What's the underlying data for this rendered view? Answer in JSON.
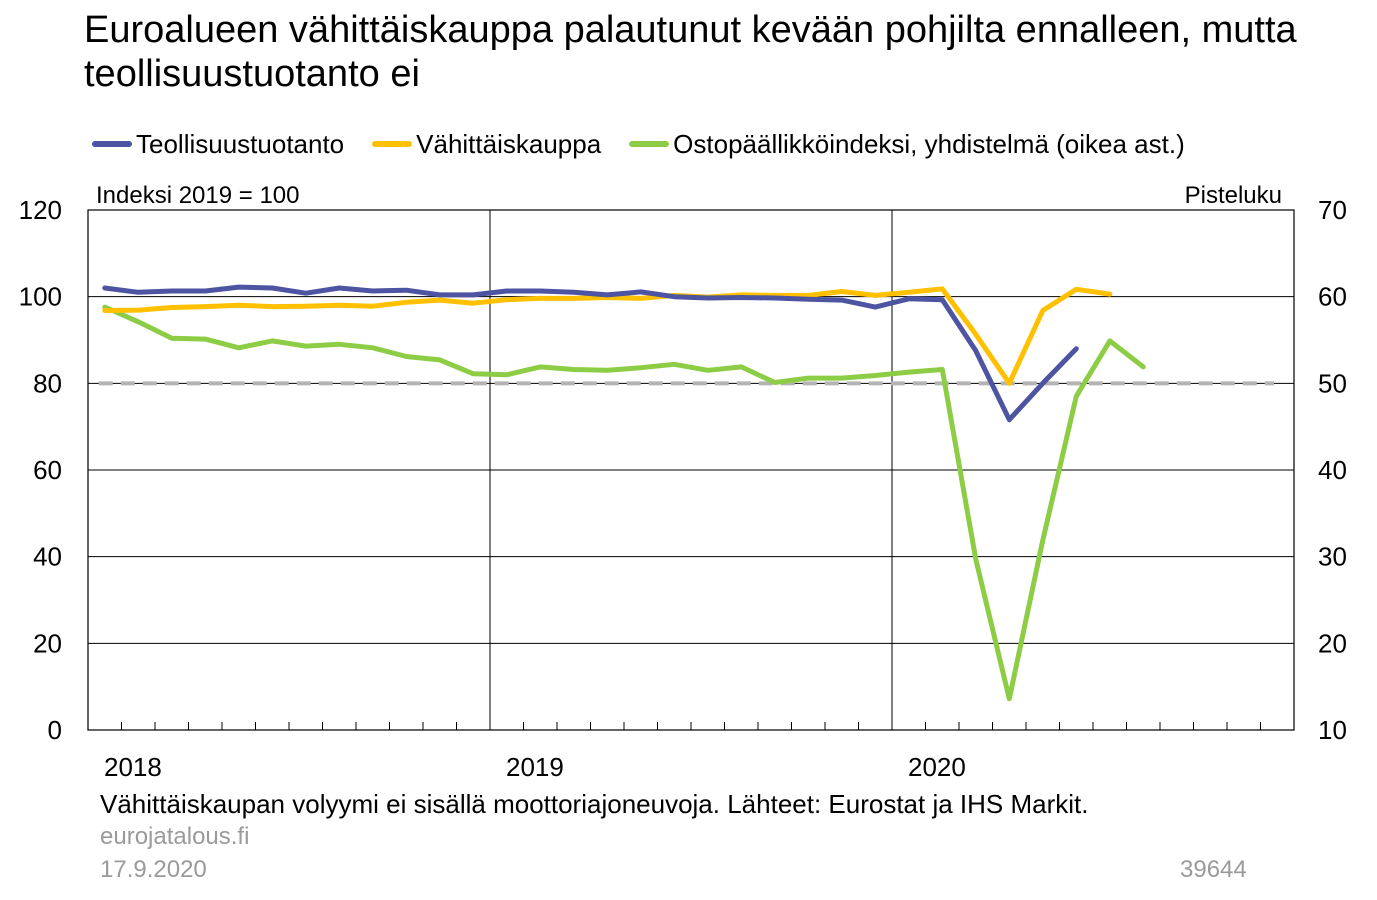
{
  "title": "Euroalueen vähittäiskauppa palautunut kevään pohjilta ennalleen, mutta teollisuustuotanto ei",
  "colors": {
    "teollisuus": "#4d54a2",
    "vahittais": "#ffc000",
    "ostopaallikko": "#8ccd45",
    "reference": "#b4b4b4"
  },
  "legend": [
    {
      "label": "Teollisuustuotanto",
      "color": "#4d54a2"
    },
    {
      "label": "Vähittäiskauppa",
      "color": "#ffc000"
    },
    {
      "label": "Ostopäällikköindeksi, yhdistelmä (oikea ast.)",
      "color": "#8ccd45"
    }
  ],
  "footnote": "Vähittäiskaupan volyymi ei sisällä moottoriajoneuvoja. Lähteet: Eurostat ja IHS Markit.",
  "site": "eurojatalous.fi",
  "date": "17.9.2020",
  "chart_id": "39644",
  "chart_data": {
    "type": "line",
    "ylabel_left": "Indeksi 2019 = 100",
    "ylabel_right": "Pisteluku",
    "ylim_left": [
      0,
      120
    ],
    "ylim_right": [
      10,
      70
    ],
    "yticks_left": [
      "0",
      "20",
      "40",
      "60",
      "80",
      "100",
      "120"
    ],
    "yticks_right": [
      "10",
      "20",
      "30",
      "40",
      "50",
      "60",
      "70"
    ],
    "x_labels": [
      "2018",
      "2019",
      "2020"
    ],
    "x_range": [
      "2018-01",
      "2020-12"
    ],
    "grid": true,
    "reference_line": {
      "axis": "right",
      "value": 50,
      "style": "dashed"
    },
    "series": [
      {
        "name": "Teollisuustuotanto",
        "axis": "left",
        "start": "2018-01",
        "values": [
          102,
          101,
          101.3,
          101.3,
          102.2,
          102,
          100.8,
          102,
          101.3,
          101.5,
          100.4,
          100.4,
          101.3,
          101.3,
          101,
          100.4,
          101.1,
          100,
          99.7,
          99.8,
          99.7,
          99.4,
          99.2,
          97.6,
          99.5,
          99.3,
          87.5,
          71.6,
          80,
          88
        ]
      },
      {
        "name": "Vähittäiskauppa",
        "axis": "left",
        "start": "2018-01",
        "values": [
          96.8,
          96.9,
          97.5,
          97.7,
          98,
          97.7,
          97.8,
          98,
          97.8,
          98.7,
          99.2,
          98.5,
          99.3,
          99.6,
          99.6,
          99.8,
          99.6,
          100.3,
          99.9,
          100.4,
          100.3,
          100.3,
          101.2,
          100.3,
          101,
          101.8,
          91.3,
          80,
          96.8,
          101.7,
          100.6
        ]
      },
      {
        "name": "Ostopäällikköindeksi, yhdistelmä (oikea ast.)",
        "axis": "right",
        "start": "2018-01",
        "values": [
          58.8,
          57.1,
          55.2,
          55.1,
          54.1,
          54.9,
          54.3,
          54.5,
          54.1,
          53.1,
          52.7,
          51.1,
          51,
          51.9,
          51.6,
          51.5,
          51.8,
          52.2,
          51.5,
          51.9,
          50.1,
          50.6,
          50.6,
          50.9,
          51.3,
          51.6,
          29.7,
          13.6,
          31.9,
          48.5,
          54.9,
          51.9
        ]
      }
    ]
  }
}
